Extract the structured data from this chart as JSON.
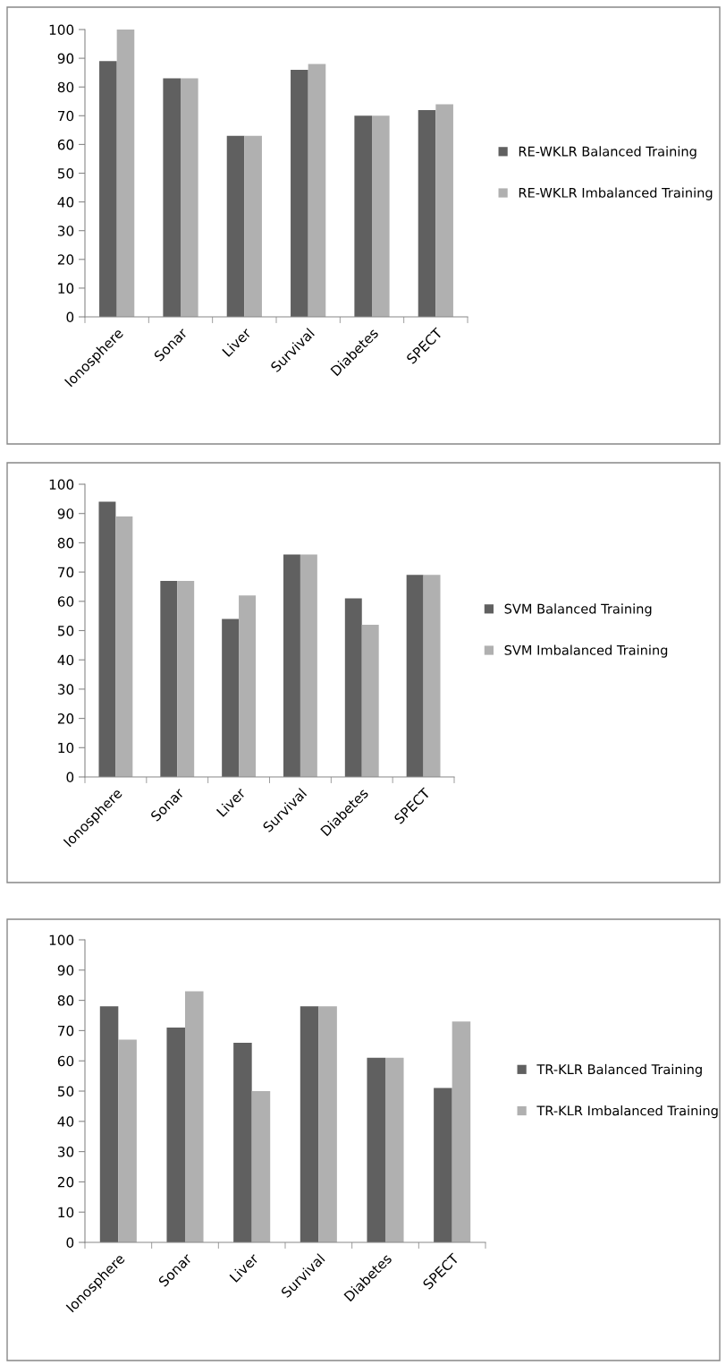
{
  "chart_data": [
    {
      "type": "bar",
      "categories": [
        "Ionosphere",
        "Sonar",
        "Liver",
        "Survival",
        "Diabetes",
        "SPECT"
      ],
      "ylim": [
        0,
        100
      ],
      "yticks": [
        0,
        10,
        20,
        30,
        40,
        50,
        60,
        70,
        80,
        90,
        100
      ],
      "grid": false,
      "legend": "right",
      "series": [
        {
          "name": "RE-WKLR Balanced Training",
          "color": "#606060",
          "values": [
            89,
            83,
            63,
            86,
            70,
            72
          ]
        },
        {
          "name": "RE-WKLR Imbalanced Training",
          "color": "#b0b0b0",
          "values": [
            100,
            83,
            63,
            88,
            70,
            74
          ]
        }
      ]
    },
    {
      "type": "bar",
      "categories": [
        "Ionosphere",
        "Sonar",
        "Liver",
        "Survival",
        "Diabetes",
        "SPECT"
      ],
      "ylim": [
        0,
        100
      ],
      "yticks": [
        0,
        10,
        20,
        30,
        40,
        50,
        60,
        70,
        80,
        90,
        100
      ],
      "grid": false,
      "legend": "right",
      "series": [
        {
          "name": "SVM Balanced Training",
          "color": "#606060",
          "values": [
            94,
            67,
            54,
            76,
            61,
            69
          ]
        },
        {
          "name": "SVM Imbalanced Training",
          "color": "#b0b0b0",
          "values": [
            89,
            67,
            62,
            76,
            52,
            69
          ]
        }
      ]
    },
    {
      "type": "bar",
      "categories": [
        "Ionosphere",
        "Sonar",
        "Liver",
        "Survival",
        "Diabetes",
        "SPECT"
      ],
      "ylim": [
        0,
        100
      ],
      "yticks": [
        0,
        10,
        20,
        30,
        40,
        50,
        60,
        70,
        80,
        90,
        100
      ],
      "grid": false,
      "legend": "right",
      "series": [
        {
          "name": "TR-KLR Balanced Training",
          "color": "#606060",
          "values": [
            78,
            71,
            66,
            78,
            61,
            51
          ]
        },
        {
          "name": "TR-KLR Imbalanced Training",
          "color": "#b0b0b0",
          "values": [
            67,
            83,
            50,
            78,
            61,
            73
          ]
        }
      ]
    }
  ]
}
